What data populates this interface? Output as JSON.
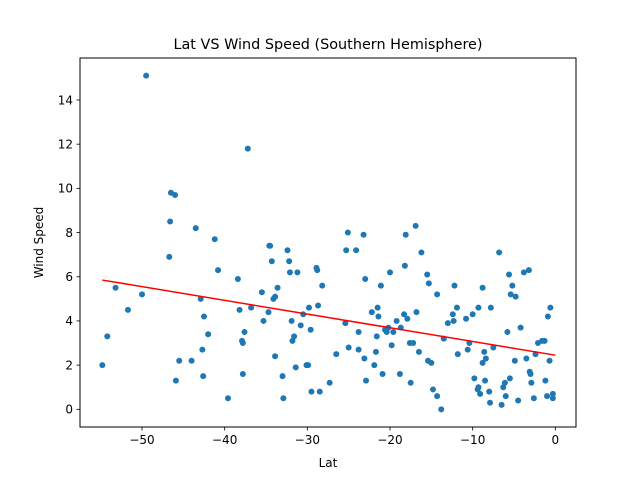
{
  "chart_data": {
    "type": "scatter",
    "title": "Lat VS Wind Speed (Southern Hemisphere)",
    "xlabel": "Lat",
    "ylabel": "Wind Speed",
    "xlim": [
      -57.5,
      2.5
    ],
    "ylim": [
      -0.8,
      15.9
    ],
    "xticks": [
      -50,
      -40,
      -30,
      -20,
      -10,
      0
    ],
    "xtick_labels": [
      "−50",
      "−40",
      "−30",
      "−20",
      "−10",
      "0"
    ],
    "yticks": [
      0,
      2,
      4,
      6,
      8,
      10,
      12,
      14
    ],
    "ytick_labels": [
      "0",
      "2",
      "4",
      "6",
      "8",
      "10",
      "12",
      "14"
    ],
    "grid": false,
    "marker_color": "#1f77b4",
    "regression_color": "#ff0000",
    "regression": {
      "x1": -54.8,
      "y1": 5.85,
      "x2": 0,
      "y2": 2.45
    },
    "points": [
      [
        -49.5,
        15.1
      ],
      [
        -37.2,
        11.8
      ],
      [
        -46.5,
        9.8
      ],
      [
        -46.0,
        9.7
      ],
      [
        -46.6,
        8.5
      ],
      [
        -46.7,
        6.9
      ],
      [
        -54.8,
        2.0
      ],
      [
        -54.2,
        3.3
      ],
      [
        -53.2,
        5.5
      ],
      [
        -51.7,
        4.5
      ],
      [
        -50.0,
        5.2
      ],
      [
        -45.5,
        2.2
      ],
      [
        -45.9,
        1.3
      ],
      [
        -44.0,
        2.2
      ],
      [
        -43.5,
        8.2
      ],
      [
        -42.9,
        5.0
      ],
      [
        -42.5,
        4.2
      ],
      [
        -42.7,
        2.7
      ],
      [
        -42.6,
        1.5
      ],
      [
        -42.0,
        3.4
      ],
      [
        -41.2,
        7.7
      ],
      [
        -40.8,
        6.3
      ],
      [
        -39.6,
        0.5
      ],
      [
        -38.4,
        5.9
      ],
      [
        -38.2,
        4.5
      ],
      [
        -37.9,
        3.1
      ],
      [
        -37.8,
        3.0
      ],
      [
        -37.6,
        3.5
      ],
      [
        -37.8,
        1.6
      ],
      [
        -36.8,
        4.6
      ],
      [
        -35.5,
        5.3
      ],
      [
        -35.3,
        4.0
      ],
      [
        -34.6,
        7.4
      ],
      [
        -34.5,
        7.4
      ],
      [
        -34.3,
        6.7
      ],
      [
        -34.7,
        4.4
      ],
      [
        -34.1,
        5.0
      ],
      [
        -33.9,
        5.1
      ],
      [
        -33.6,
        5.5
      ],
      [
        -33.9,
        2.4
      ],
      [
        -33.0,
        1.5
      ],
      [
        -32.9,
        0.5
      ],
      [
        -32.4,
        7.2
      ],
      [
        -32.2,
        6.7
      ],
      [
        -32.1,
        6.2
      ],
      [
        -31.9,
        4.0
      ],
      [
        -31.8,
        3.1
      ],
      [
        -31.6,
        3.3
      ],
      [
        -31.4,
        1.9
      ],
      [
        -31.2,
        6.2
      ],
      [
        -30.5,
        4.3
      ],
      [
        -30.8,
        3.8
      ],
      [
        -30.1,
        2.0
      ],
      [
        -29.8,
        4.6
      ],
      [
        -29.9,
        2.0
      ],
      [
        -29.6,
        3.6
      ],
      [
        -29.5,
        0.8
      ],
      [
        -28.9,
        6.4
      ],
      [
        -28.8,
        6.3
      ],
      [
        -28.7,
        4.7
      ],
      [
        -28.5,
        0.8
      ],
      [
        -28.2,
        5.6
      ],
      [
        -27.3,
        1.2
      ],
      [
        -26.5,
        2.5
      ],
      [
        -25.3,
        7.2
      ],
      [
        -25.1,
        8.0
      ],
      [
        -25.4,
        3.9
      ],
      [
        -25.0,
        2.8
      ],
      [
        -24.1,
        7.2
      ],
      [
        -23.8,
        3.5
      ],
      [
        -23.8,
        2.7
      ],
      [
        -23.2,
        7.9
      ],
      [
        -23.0,
        5.9
      ],
      [
        -23.1,
        2.3
      ],
      [
        -22.9,
        1.3
      ],
      [
        -22.2,
        4.4
      ],
      [
        -21.9,
        2.0
      ],
      [
        -21.7,
        2.6
      ],
      [
        -21.5,
        4.6
      ],
      [
        -21.4,
        4.2
      ],
      [
        -21.6,
        3.3
      ],
      [
        -21.1,
        5.6
      ],
      [
        -20.9,
        1.6
      ],
      [
        -20.6,
        3.6
      ],
      [
        -20.4,
        3.5
      ],
      [
        -20.2,
        3.7
      ],
      [
        -20.0,
        6.2
      ],
      [
        -19.8,
        2.9
      ],
      [
        -19.6,
        3.5
      ],
      [
        -19.2,
        4.0
      ],
      [
        -18.8,
        1.6
      ],
      [
        -18.7,
        3.7
      ],
      [
        -18.3,
        4.3
      ],
      [
        -18.1,
        7.9
      ],
      [
        -18.2,
        6.5
      ],
      [
        -17.9,
        4.1
      ],
      [
        -17.6,
        3.0
      ],
      [
        -17.5,
        1.2
      ],
      [
        -17.2,
        3.0
      ],
      [
        -16.9,
        8.3
      ],
      [
        -16.8,
        4.4
      ],
      [
        -16.5,
        2.6
      ],
      [
        -16.2,
        7.1
      ],
      [
        -15.5,
        6.1
      ],
      [
        -15.4,
        2.2
      ],
      [
        -15.3,
        5.7
      ],
      [
        -15.0,
        2.1
      ],
      [
        -14.8,
        0.9
      ],
      [
        -14.3,
        5.2
      ],
      [
        -14.3,
        0.6
      ],
      [
        -13.8,
        0.0
      ],
      [
        -13.5,
        3.2
      ],
      [
        -13.0,
        3.9
      ],
      [
        -12.4,
        4.3
      ],
      [
        -12.2,
        5.6
      ],
      [
        -12.3,
        4.0
      ],
      [
        -11.9,
        4.6
      ],
      [
        -11.8,
        2.5
      ],
      [
        -10.8,
        4.1
      ],
      [
        -10.6,
        2.7
      ],
      [
        -10.4,
        3.0
      ],
      [
        -10.0,
        4.3
      ],
      [
        -9.8,
        1.4
      ],
      [
        -9.4,
        0.9
      ],
      [
        -9.3,
        1.0
      ],
      [
        -9.3,
        4.6
      ],
      [
        -9.1,
        0.7
      ],
      [
        -8.8,
        2.1
      ],
      [
        -8.8,
        5.5
      ],
      [
        -8.6,
        2.6
      ],
      [
        -8.5,
        1.3
      ],
      [
        -8.4,
        2.3
      ],
      [
        -8.0,
        0.8
      ],
      [
        -7.9,
        0.3
      ],
      [
        -7.8,
        4.6
      ],
      [
        -7.5,
        2.8
      ],
      [
        -6.8,
        7.1
      ],
      [
        -6.5,
        0.2
      ],
      [
        -6.3,
        1.0
      ],
      [
        -6.1,
        1.2
      ],
      [
        -6.0,
        0.6
      ],
      [
        -5.8,
        3.5
      ],
      [
        -5.6,
        6.1
      ],
      [
        -5.5,
        1.4
      ],
      [
        -5.4,
        5.2
      ],
      [
        -5.2,
        5.6
      ],
      [
        -4.8,
        5.1
      ],
      [
        -4.9,
        2.2
      ],
      [
        -4.5,
        0.4
      ],
      [
        -4.2,
        3.7
      ],
      [
        -3.8,
        6.2
      ],
      [
        -3.5,
        2.3
      ],
      [
        -3.2,
        6.3
      ],
      [
        -3.1,
        1.7
      ],
      [
        -3.0,
        1.6
      ],
      [
        -2.9,
        1.2
      ],
      [
        -2.6,
        0.5
      ],
      [
        -2.4,
        2.5
      ],
      [
        -2.1,
        3.0
      ],
      [
        -1.6,
        3.1
      ],
      [
        -1.3,
        3.1
      ],
      [
        -1.2,
        1.3
      ],
      [
        -1.0,
        0.6
      ],
      [
        -0.9,
        4.2
      ],
      [
        -0.7,
        2.2
      ],
      [
        -0.6,
        4.6
      ],
      [
        -0.3,
        0.7
      ],
      [
        -0.3,
        0.5
      ]
    ]
  }
}
